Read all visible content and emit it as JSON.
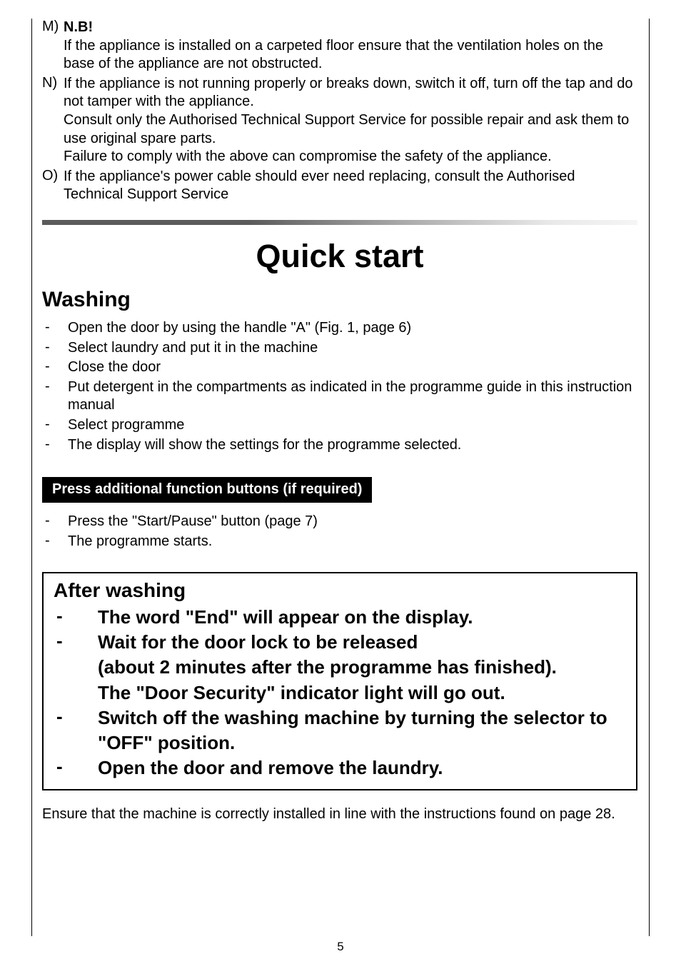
{
  "colors": {
    "text": "#000000",
    "background": "#ffffff",
    "banner_bg": "#000000",
    "banner_text": "#ffffff",
    "gradient_start": "#5b5b5b",
    "gradient_end": "#f5f5f5"
  },
  "topList": {
    "m": {
      "marker": "M)",
      "bold": "N.B!",
      "line1": "If the appliance is installed on a carpeted floor ensure that the ventilation holes on the base of the appliance are not obstructed."
    },
    "n": {
      "marker": "N)",
      "line1": "If the appliance is not running properly or breaks down, switch it off, turn off the tap and do not tamper with the appliance.",
      "line2": "Consult only the Authorised Technical Support Service for possible repair and ask them to use original spare parts.",
      "line3": "Failure to comply with the above can compromise the safety of the appliance."
    },
    "o": {
      "marker": "O)",
      "line1": "If the appliance's power cable should ever need replacing, consult the Authorised Technical Support Service"
    }
  },
  "title": "Quick start",
  "washing": {
    "heading": "Washing",
    "items": [
      "Open the door by using the handle \"A\" (Fig. 1, page 6)",
      "Select laundry and put it in the machine",
      "Close the door",
      "Put detergent in the compartments as indicated in the programme guide in this instruction manual",
      "Select programme",
      "The display will show the settings for the programme selected."
    ]
  },
  "banner": "Press additional function buttons (if required)",
  "postBanner": {
    "items": [
      "Press the \"Start/Pause\" button (page 7)",
      "The programme starts."
    ]
  },
  "after": {
    "heading": "After washing",
    "items": [
      "The word \"End\" will appear on the display.",
      "Wait for the door lock to be released\n(about 2 minutes after the programme has finished).\nThe \"Door Security\" indicator light will go out.",
      "Switch off the washing machine by turning the selector to \"OFF\" position.",
      "Open the door and remove the laundry."
    ]
  },
  "footer": "Ensure that the machine is correctly installed in line with the instructions found on page 28.",
  "pageNumber": "5"
}
